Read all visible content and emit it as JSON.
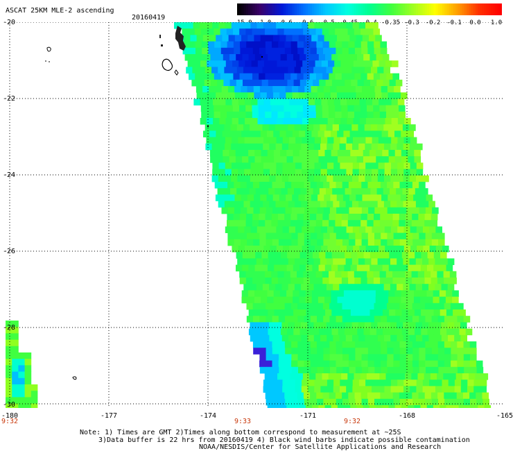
{
  "header": {
    "title": "ASCAT 25KM MLE-2 ascending",
    "date": "20160419"
  },
  "colorbar": {
    "labels": [
      "-15.0",
      "-1.0",
      "-0.6",
      "-0.6",
      "-0.5",
      "-0.45",
      "-0.4",
      "-0.35",
      "-0.3",
      "-0.2",
      "-0.1",
      "0.0",
      "1.0"
    ],
    "colors": [
      "#000000",
      "#3a006a",
      "#0018d8",
      "#0070ff",
      "#00c8ff",
      "#00ffe0",
      "#00ff90",
      "#40ff40",
      "#a0ff20",
      "#ffff00",
      "#ffa000",
      "#ff3000",
      "#ff0000"
    ]
  },
  "axes": {
    "y_ticks": [
      "-20",
      "-22",
      "-24",
      "-26",
      "-28",
      "-30"
    ],
    "x_ticks": [
      "-180",
      "-177",
      "-174",
      "-171",
      "-168",
      "-165"
    ],
    "x_range": [
      -180,
      -165
    ],
    "y_range": [
      -20,
      -30
    ]
  },
  "times": [
    {
      "label": "9:32",
      "lon": -180
    },
    {
      "label": "9:33",
      "lon": -174
    },
    {
      "label": "9:32",
      "lon": -171
    }
  ],
  "notes": {
    "line1": "Note: 1) Times are GMT 2)Times along bottom correspond to measurement at ~25S",
    "line2": "3)Data buffer is 22 hrs from 20160419 4) Black wind barbs indicate possible contamination",
    "line3": "NOAA/NESDIS/Center for Satellite Applications and Research"
  }
}
